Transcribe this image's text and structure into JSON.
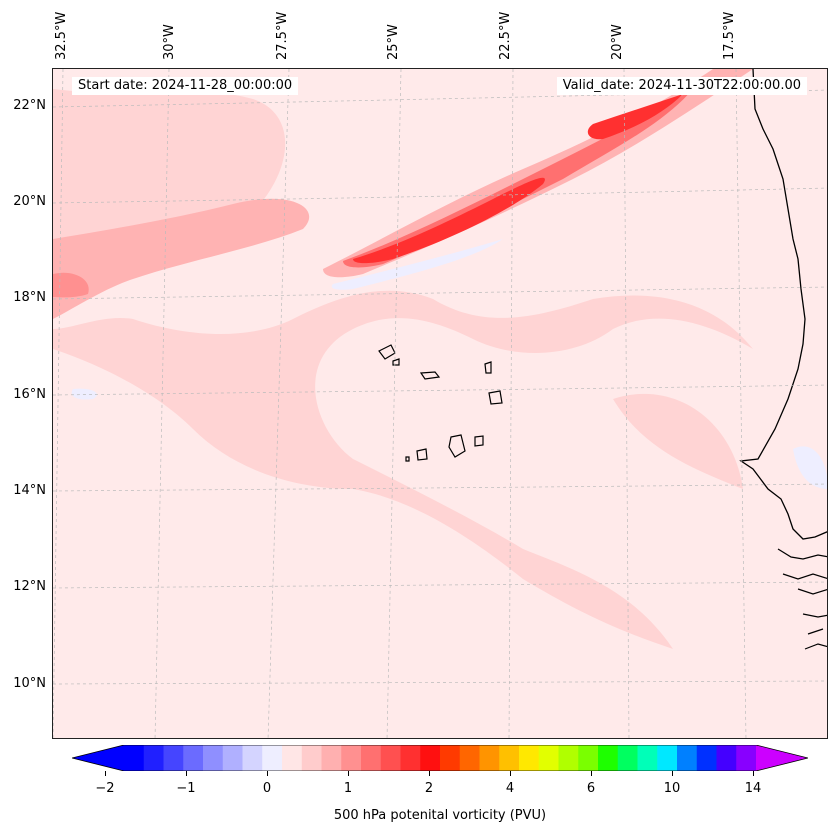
{
  "map": {
    "start_date": "Start date: 2024-11-28_00:00:00",
    "valid_date": "Valid_date: 2024-11-30T22:00:00.00",
    "lon_labels": [
      "32.5°W",
      "30°W",
      "27.5°W",
      "25°W",
      "22.5°W",
      "20°W",
      "17.5°W"
    ],
    "lat_labels": [
      "22°N",
      "20°N",
      "18°N",
      "16°N",
      "14°N",
      "12°N",
      "10°N"
    ],
    "colors": {
      "background": "#ffeaea",
      "light": "#ffd4d4",
      "mid": "#ffb3b3",
      "strong": "#ff7070",
      "max": "#ff3030",
      "blue_tint": "#eeeeff",
      "coast": "#000000"
    }
  },
  "colorbar": {
    "label": "500 hPa potenital vorticity (PVU)",
    "tick_labels": [
      "−2",
      "−1",
      "0",
      "1",
      "2",
      "4",
      "6",
      "10",
      "14"
    ],
    "colors": [
      "#0000ff",
      "#2020ff",
      "#4545ff",
      "#6b6bff",
      "#8f8fff",
      "#b0b0ff",
      "#d4d4ff",
      "#eeeeff",
      "#ffe6e6",
      "#ffcccc",
      "#ffb0b0",
      "#ff9090",
      "#ff7070",
      "#ff5050",
      "#ff3030",
      "#ff1010",
      "#ff3a00",
      "#ff6600",
      "#ff9400",
      "#ffc000",
      "#ffe800",
      "#e2ff00",
      "#b0ff00",
      "#7aff00",
      "#1eff00",
      "#00ff60",
      "#00ffb8",
      "#00e8ff",
      "#0080ff",
      "#0030ff",
      "#4400ff",
      "#8800ff"
    ],
    "under_color": "#0000ff",
    "over_color": "#cc00ff"
  }
}
